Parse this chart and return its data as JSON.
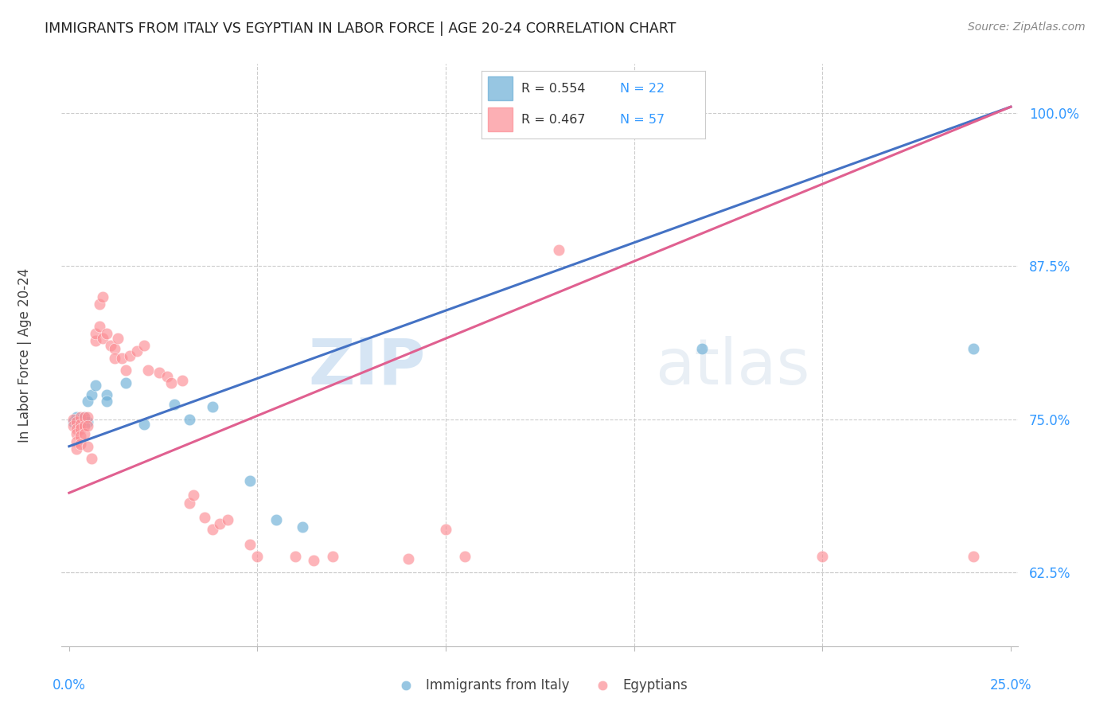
{
  "title": "IMMIGRANTS FROM ITALY VS EGYPTIAN IN LABOR FORCE | AGE 20-24 CORRELATION CHART",
  "source": "Source: ZipAtlas.com",
  "ylabel": "In Labor Force | Age 20-24",
  "ytick_labels": [
    "62.5%",
    "75.0%",
    "87.5%",
    "100.0%"
  ],
  "ytick_values": [
    0.625,
    0.75,
    0.875,
    1.0
  ],
  "xlim": [
    -0.002,
    0.252
  ],
  "ylim": [
    0.565,
    1.04
  ],
  "italy_color": "#6baed6",
  "egypt_color": "#fc8d94",
  "italy_R": 0.554,
  "italy_N": 22,
  "egypt_R": 0.467,
  "egypt_N": 57,
  "legend_label_italy": "Immigrants from Italy",
  "legend_label_egypt": "Egyptians",
  "watermark_zip": "ZIP",
  "watermark_atlas": "atlas",
  "background_color": "#ffffff",
  "grid_color": "#cccccc",
  "italy_line": [
    [
      0.0,
      0.728
    ],
    [
      0.25,
      1.005
    ]
  ],
  "egypt_line": [
    [
      0.0,
      0.69
    ],
    [
      0.25,
      1.005
    ]
  ],
  "italy_scatter": [
    [
      0.001,
      0.748
    ],
    [
      0.002,
      0.752
    ],
    [
      0.003,
      0.75
    ],
    [
      0.003,
      0.748
    ],
    [
      0.004,
      0.752
    ],
    [
      0.004,
      0.75
    ],
    [
      0.005,
      0.765
    ],
    [
      0.005,
      0.748
    ],
    [
      0.006,
      0.77
    ],
    [
      0.007,
      0.778
    ],
    [
      0.01,
      0.77
    ],
    [
      0.01,
      0.765
    ],
    [
      0.015,
      0.78
    ],
    [
      0.02,
      0.746
    ],
    [
      0.028,
      0.762
    ],
    [
      0.032,
      0.75
    ],
    [
      0.038,
      0.76
    ],
    [
      0.048,
      0.7
    ],
    [
      0.055,
      0.668
    ],
    [
      0.062,
      0.662
    ],
    [
      0.168,
      0.808
    ],
    [
      0.24,
      0.808
    ]
  ],
  "egypt_scatter": [
    [
      0.001,
      0.75
    ],
    [
      0.001,
      0.745
    ],
    [
      0.002,
      0.748
    ],
    [
      0.002,
      0.742
    ],
    [
      0.002,
      0.738
    ],
    [
      0.002,
      0.732
    ],
    [
      0.002,
      0.726
    ],
    [
      0.003,
      0.752
    ],
    [
      0.003,
      0.746
    ],
    [
      0.003,
      0.742
    ],
    [
      0.003,
      0.736
    ],
    [
      0.003,
      0.73
    ],
    [
      0.004,
      0.752
    ],
    [
      0.004,
      0.745
    ],
    [
      0.004,
      0.738
    ],
    [
      0.005,
      0.752
    ],
    [
      0.005,
      0.745
    ],
    [
      0.005,
      0.728
    ],
    [
      0.006,
      0.718
    ],
    [
      0.007,
      0.814
    ],
    [
      0.007,
      0.82
    ],
    [
      0.008,
      0.844
    ],
    [
      0.008,
      0.826
    ],
    [
      0.009,
      0.85
    ],
    [
      0.009,
      0.816
    ],
    [
      0.01,
      0.82
    ],
    [
      0.011,
      0.81
    ],
    [
      0.012,
      0.808
    ],
    [
      0.012,
      0.8
    ],
    [
      0.013,
      0.816
    ],
    [
      0.014,
      0.8
    ],
    [
      0.015,
      0.79
    ],
    [
      0.016,
      0.802
    ],
    [
      0.018,
      0.806
    ],
    [
      0.02,
      0.81
    ],
    [
      0.021,
      0.79
    ],
    [
      0.024,
      0.788
    ],
    [
      0.026,
      0.785
    ],
    [
      0.027,
      0.78
    ],
    [
      0.03,
      0.782
    ],
    [
      0.032,
      0.682
    ],
    [
      0.033,
      0.688
    ],
    [
      0.036,
      0.67
    ],
    [
      0.038,
      0.66
    ],
    [
      0.04,
      0.665
    ],
    [
      0.042,
      0.668
    ],
    [
      0.048,
      0.648
    ],
    [
      0.05,
      0.638
    ],
    [
      0.06,
      0.638
    ],
    [
      0.065,
      0.635
    ],
    [
      0.07,
      0.638
    ],
    [
      0.09,
      0.636
    ],
    [
      0.1,
      0.66
    ],
    [
      0.105,
      0.638
    ],
    [
      0.13,
      0.888
    ],
    [
      0.2,
      0.638
    ],
    [
      0.24,
      0.638
    ]
  ]
}
